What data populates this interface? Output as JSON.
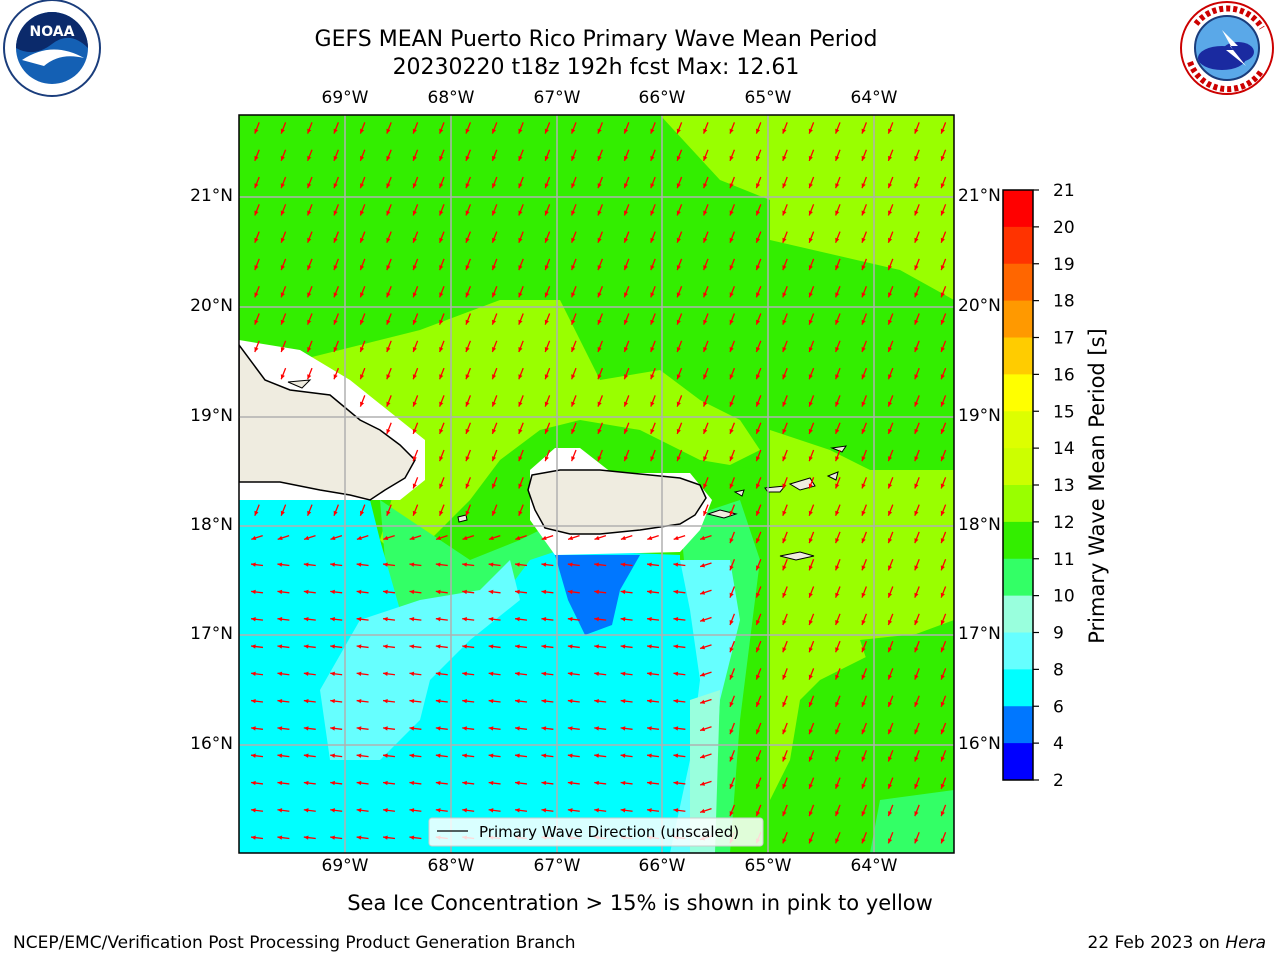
{
  "header": {
    "title_line1": "GEFS MEAN Puerto Rico Primary Wave Mean Period",
    "title_line2": "20230220 t18z 192h fcst   Max: 12.61"
  },
  "logos": {
    "left": {
      "icon": "noaa-logo",
      "text": "NOAA"
    },
    "right": {
      "icon": "nws-logo",
      "text": "NATIONAL WEATHER SERVICE"
    }
  },
  "map": {
    "lon_labels": [
      "69°W",
      "68°W",
      "67°W",
      "66°W",
      "65°W",
      "64°W"
    ],
    "lat_labels": [
      "21°N",
      "20°N",
      "19°N",
      "18°N",
      "17°N",
      "16°N"
    ],
    "legend_label": "Primary Wave Direction (unscaled)",
    "arrow_color": "#ff0000"
  },
  "colorbar": {
    "label": "Primary Wave Mean Period [s]",
    "ticks": [
      "21",
      "20",
      "19",
      "18",
      "17",
      "16",
      "15",
      "14",
      "13",
      "12",
      "11",
      "10",
      "9",
      "8",
      "6",
      "4",
      "2"
    ],
    "colors": [
      "#ff0000",
      "#ff3300",
      "#ff6600",
      "#ff9900",
      "#ffcc00",
      "#ffff00",
      "#ddff00",
      "#ccff00",
      "#99ff00",
      "#33ee00",
      "#33ff66",
      "#99ffdd",
      "#66ffff",
      "#00ffff",
      "#0077ff",
      "#0000ff"
    ]
  },
  "note": "Sea Ice Concentration > 15% is shown in pink to yellow",
  "footer": {
    "left": "NCEP/EMC/Verification Post Processing Product Generation Branch",
    "date": "22 Feb 2023 on ",
    "machine": "Hera"
  }
}
